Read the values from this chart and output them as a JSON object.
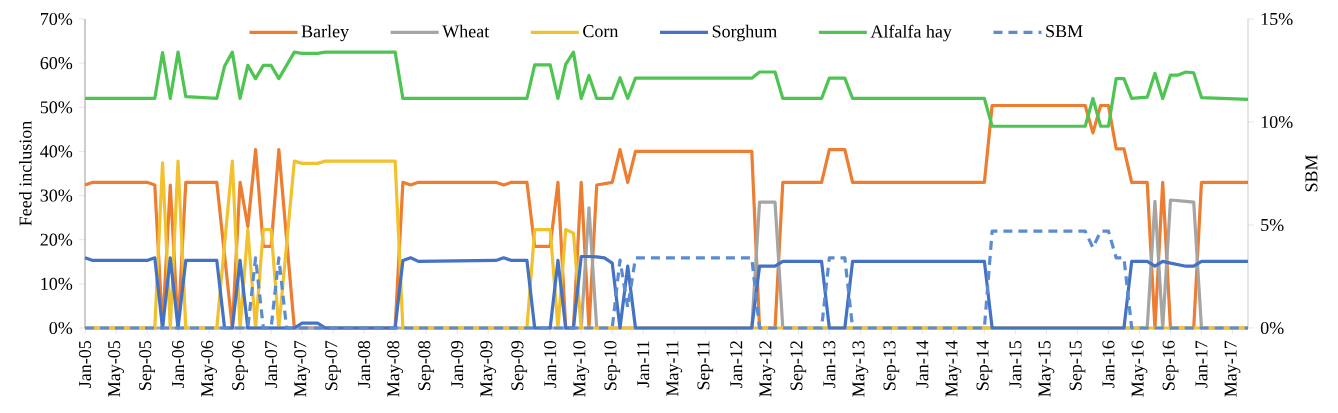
{
  "chart_data": {
    "type": "line",
    "ylabel": "Feed inclusion",
    "y2label": "SBM",
    "legend": "top",
    "xlim": [
      "2005-01",
      "2017-07"
    ],
    "xticks": [
      {
        "value": "2005-01",
        "label": "Jan-05"
      },
      {
        "value": "2005-05",
        "label": "May-05"
      },
      {
        "value": "2005-09",
        "label": "Sep-05"
      },
      {
        "value": "2006-01",
        "label": "Jan-06"
      },
      {
        "value": "2006-05",
        "label": "May-06"
      },
      {
        "value": "2006-09",
        "label": "Sep-06"
      },
      {
        "value": "2007-01",
        "label": "Jan-07"
      },
      {
        "value": "2007-05",
        "label": "May-07"
      },
      {
        "value": "2007-09",
        "label": "Sep-07"
      },
      {
        "value": "2008-01",
        "label": "Jan-08"
      },
      {
        "value": "2008-05",
        "label": "May-08"
      },
      {
        "value": "2008-09",
        "label": "Sep-08"
      },
      {
        "value": "2009-01",
        "label": "Jan-09"
      },
      {
        "value": "2009-05",
        "label": "May-09"
      },
      {
        "value": "2009-09",
        "label": "Sep-09"
      },
      {
        "value": "2010-01",
        "label": "Jan-10"
      },
      {
        "value": "2010-05",
        "label": "May-10"
      },
      {
        "value": "2010-09",
        "label": "Sep-10"
      },
      {
        "value": "2011-01",
        "label": "Jan-11"
      },
      {
        "value": "2011-05",
        "label": "May-11"
      },
      {
        "value": "2011-09",
        "label": "Sep-11"
      },
      {
        "value": "2012-01",
        "label": "Jan-12"
      },
      {
        "value": "2012-05",
        "label": "May-12"
      },
      {
        "value": "2012-09",
        "label": "Sep-12"
      },
      {
        "value": "2013-01",
        "label": "Jan-13"
      },
      {
        "value": "2013-05",
        "label": "May-13"
      },
      {
        "value": "2013-09",
        "label": "Sep-13"
      },
      {
        "value": "2014-01",
        "label": "Jan-14"
      },
      {
        "value": "2014-05",
        "label": "May-14"
      },
      {
        "value": "2014-09",
        "label": "Sep-14"
      },
      {
        "value": "2015-01",
        "label": "Jan-15"
      },
      {
        "value": "2015-05",
        "label": "May-15"
      },
      {
        "value": "2015-09",
        "label": "Sep-15"
      },
      {
        "value": "2016-01",
        "label": "Jan-16"
      },
      {
        "value": "2016-05",
        "label": "May-16"
      },
      {
        "value": "2016-09",
        "label": "Sep-16"
      },
      {
        "value": "2017-01",
        "label": "Jan-17"
      },
      {
        "value": "2017-05",
        "label": "May-17"
      }
    ],
    "ylim": [
      0,
      70
    ],
    "yticks": [
      {
        "value": 0,
        "label": "0%"
      },
      {
        "value": 10,
        "label": "10%"
      },
      {
        "value": 20,
        "label": "20%"
      },
      {
        "value": 30,
        "label": "30%"
      },
      {
        "value": 40,
        "label": "40%"
      },
      {
        "value": 50,
        "label": "50%"
      },
      {
        "value": 60,
        "label": "60%"
      },
      {
        "value": 70,
        "label": "70%"
      }
    ],
    "y2lim": [
      0,
      15
    ],
    "y2ticks": [
      {
        "value": 0,
        "label": "0%"
      },
      {
        "value": 5,
        "label": "5%"
      },
      {
        "value": 10,
        "label": "10%"
      },
      {
        "value": 15,
        "label": "15%"
      }
    ],
    "series": [
      {
        "name": "Barley",
        "color": "#ed7d31",
        "x": [
          "2005-01",
          "2005-02",
          "2005-09",
          "2005-10",
          "2005-11",
          "2005-12",
          "2006-01",
          "2006-02",
          "2006-06",
          "2006-08",
          "2006-09",
          "2006-10",
          "2006-11",
          "2006-12",
          "2007-01",
          "2007-02",
          "2007-04",
          "2008-05",
          "2008-06",
          "2008-07",
          "2008-08",
          "2009-06",
          "2009-07",
          "2009-08",
          "2009-10",
          "2009-11",
          "2010-01",
          "2010-02",
          "2010-03",
          "2010-04",
          "2010-05",
          "2010-06",
          "2010-07",
          "2010-09",
          "2010-10",
          "2010-11",
          "2010-12",
          "2012-03",
          "2012-04",
          "2012-06",
          "2012-07",
          "2012-12",
          "2013-01",
          "2013-03",
          "2013-04",
          "2014-09",
          "2014-10",
          "2015-10",
          "2015-11",
          "2015-12",
          "2016-01",
          "2016-02",
          "2016-03",
          "2016-04",
          "2016-06",
          "2016-07",
          "2016-08",
          "2016-09",
          "2016-12",
          "2017-01",
          "2017-07"
        ],
        "values": [
          32.4,
          33,
          33,
          32.4,
          0,
          32.4,
          0,
          33,
          33,
          0,
          33,
          23,
          40.4,
          18.5,
          18.5,
          40.4,
          0,
          0,
          33,
          32.4,
          33,
          33,
          32.4,
          33,
          33,
          18.5,
          18.5,
          33,
          0,
          0,
          33,
          0,
          32.4,
          33,
          40.4,
          33,
          40,
          40,
          0,
          0,
          33,
          33,
          40.4,
          40.4,
          33,
          33,
          50.4,
          50.4,
          44.2,
          50.4,
          50.4,
          40.6,
          40.6,
          33,
          33,
          0,
          33,
          0,
          0,
          33,
          33
        ]
      },
      {
        "name": "Wheat",
        "color": "#a5a5a5",
        "x": [
          "2005-01",
          "2010-05",
          "2010-06",
          "2010-07",
          "2012-03",
          "2012-04",
          "2012-06",
          "2012-07",
          "2016-06",
          "2016-07",
          "2016-08",
          "2016-09",
          "2016-11",
          "2016-12",
          "2017-01",
          "2017-07"
        ],
        "values": [
          0,
          0,
          27.2,
          0,
          0,
          28.5,
          28.5,
          0,
          0,
          28.7,
          0,
          29,
          28.7,
          28.5,
          0,
          0
        ]
      },
      {
        "name": "Corn",
        "color": "#f2c12e",
        "x": [
          "2005-01",
          "2005-10",
          "2005-11",
          "2005-12",
          "2006-01",
          "2006-02",
          "2006-06",
          "2006-08",
          "2006-09",
          "2006-10",
          "2006-11",
          "2006-12",
          "2007-01",
          "2007-02",
          "2007-04",
          "2007-05",
          "2007-07",
          "2007-08",
          "2008-05",
          "2008-06",
          "2009-10",
          "2009-11",
          "2010-01",
          "2010-02",
          "2010-03",
          "2010-04",
          "2010-05",
          "2017-07"
        ],
        "values": [
          0,
          0,
          37.4,
          0,
          37.8,
          0,
          0,
          37.8,
          0,
          22.3,
          0,
          22.3,
          22.3,
          0,
          37.8,
          37.3,
          37.3,
          37.8,
          37.8,
          0,
          0,
          22.3,
          22.3,
          0,
          22.3,
          21.5,
          0,
          0
        ]
      },
      {
        "name": "Sorghum",
        "color": "#4472c4",
        "x": [
          "2005-01",
          "2005-02",
          "2005-09",
          "2005-10",
          "2005-11",
          "2005-12",
          "2006-01",
          "2006-02",
          "2006-06",
          "2006-07",
          "2006-08",
          "2006-09",
          "2006-10",
          "2007-04",
          "2007-05",
          "2007-07",
          "2007-08",
          "2008-05",
          "2008-06",
          "2008-07",
          "2008-08",
          "2009-06",
          "2009-07",
          "2009-08",
          "2009-10",
          "2009-11",
          "2010-01",
          "2010-02",
          "2010-03",
          "2010-04",
          "2010-05",
          "2010-06",
          "2010-07",
          "2010-08",
          "2010-09",
          "2010-10",
          "2010-11",
          "2010-12",
          "2012-03",
          "2012-04",
          "2012-06",
          "2012-07",
          "2012-12",
          "2013-01",
          "2013-03",
          "2013-04",
          "2014-09",
          "2014-10",
          "2016-03",
          "2016-04",
          "2016-06",
          "2016-07",
          "2016-08",
          "2016-09",
          "2016-11",
          "2016-12",
          "2017-01",
          "2017-07"
        ],
        "values": [
          15.9,
          15.3,
          15.3,
          15.9,
          0,
          15.9,
          0,
          15.3,
          15.3,
          0,
          0,
          15.3,
          0,
          0,
          1.1,
          1.1,
          0,
          0,
          15.3,
          15.9,
          15.1,
          15.3,
          15.9,
          15.3,
          15.3,
          0,
          0,
          15.3,
          0,
          0,
          16.2,
          16.2,
          16.1,
          15.9,
          14.7,
          0,
          14,
          0,
          0,
          14,
          14,
          15.1,
          15.1,
          0,
          0,
          15.1,
          15.1,
          0,
          0,
          15.1,
          15.1,
          14,
          15.1,
          14.7,
          14,
          14,
          15.1,
          15.1
        ]
      },
      {
        "name": "Alfalfa hay",
        "color": "#4ec552",
        "x": [
          "2005-01",
          "2005-10",
          "2005-11",
          "2005-12",
          "2006-01",
          "2006-02",
          "2006-06",
          "2006-07",
          "2006-08",
          "2006-09",
          "2006-10",
          "2006-11",
          "2006-12",
          "2007-01",
          "2007-02",
          "2007-04",
          "2007-05",
          "2007-07",
          "2007-08",
          "2008-05",
          "2008-06",
          "2009-10",
          "2009-11",
          "2010-01",
          "2010-02",
          "2010-03",
          "2010-04",
          "2010-05",
          "2010-06",
          "2010-07",
          "2010-09",
          "2010-10",
          "2010-11",
          "2010-12",
          "2012-03",
          "2012-04",
          "2012-06",
          "2012-07",
          "2012-12",
          "2013-01",
          "2013-03",
          "2013-04",
          "2014-09",
          "2014-10",
          "2015-10",
          "2015-11",
          "2015-12",
          "2016-01",
          "2016-02",
          "2016-03",
          "2016-04",
          "2016-06",
          "2016-07",
          "2016-08",
          "2016-09",
          "2016-10",
          "2016-11",
          "2016-12",
          "2017-01",
          "2017-07"
        ],
        "values": [
          52,
          52,
          62.4,
          52,
          62.5,
          52.4,
          52,
          59.3,
          62.5,
          52,
          59.5,
          56.5,
          59.5,
          59.5,
          56.5,
          62.5,
          62.2,
          62.2,
          62.5,
          62.5,
          52,
          52,
          59.6,
          59.6,
          52,
          59.7,
          62.5,
          52,
          57.2,
          52,
          52,
          56.7,
          52,
          56.6,
          56.6,
          58,
          58,
          52,
          52,
          56.6,
          56.6,
          52,
          52,
          45.7,
          45.7,
          52,
          45.7,
          45.7,
          56.5,
          56.5,
          52,
          52.3,
          57.7,
          52,
          57.3,
          57.3,
          58,
          57.8,
          52.2,
          51.8
        ]
      },
      {
        "name": "SBM",
        "color": "#5b8bd0",
        "line_style": "dashed",
        "axis": "y2",
        "x": [
          "2005-01",
          "2006-10",
          "2006-11",
          "2006-12",
          "2007-01",
          "2007-02",
          "2007-03",
          "2010-09",
          "2010-10",
          "2010-11",
          "2010-12",
          "2012-03",
          "2012-04",
          "2012-12",
          "2013-01",
          "2013-03",
          "2013-04",
          "2014-09",
          "2014-10",
          "2015-10",
          "2015-11",
          "2015-12",
          "2016-01",
          "2016-02",
          "2016-03",
          "2016-04",
          "2017-07"
        ],
        "values": [
          0,
          0,
          3.4,
          0,
          0,
          3.4,
          0,
          0,
          3.3,
          1,
          3.4,
          3.4,
          0,
          0,
          3.4,
          3.4,
          0,
          0,
          4.7,
          4.7,
          3.9,
          4.7,
          4.7,
          3.4,
          3.4,
          0,
          0
        ]
      }
    ]
  }
}
